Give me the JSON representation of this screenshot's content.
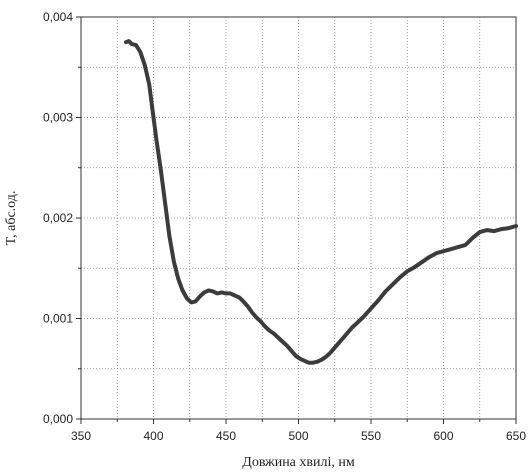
{
  "chart_data": {
    "type": "line",
    "xlabel": "Довжина хвилі, нм",
    "ylabel": "T, абс.од.",
    "xlim": [
      350,
      650
    ],
    "ylim": [
      0,
      0.004
    ],
    "x_ticks": [
      "350",
      "400",
      "450",
      "500",
      "550",
      "600",
      "650"
    ],
    "y_ticks": [
      "0,000",
      "0,001",
      "0,002",
      "0,003",
      "0,004"
    ],
    "grid": true,
    "grid_style": "dotted",
    "line_color": "#3c3c3c",
    "series": [
      {
        "x": [
          381,
          383,
          385,
          388,
          391,
          394,
          397,
          400,
          402,
          405,
          408,
          411,
          414,
          417,
          420,
          423,
          426,
          429,
          432,
          435,
          438,
          441,
          444,
          447,
          450,
          453,
          456,
          459,
          462,
          465,
          468,
          471,
          474,
          477,
          480,
          483,
          486,
          489,
          492,
          495,
          498,
          501,
          504,
          507,
          510,
          513,
          516,
          519,
          522,
          525,
          528,
          531,
          534,
          537,
          540,
          545,
          550,
          555,
          560,
          565,
          570,
          575,
          580,
          585,
          590,
          595,
          600,
          605,
          610,
          615,
          620,
          625,
          630,
          635,
          640,
          645,
          650
        ],
        "y": [
          0.00375,
          0.00376,
          0.00373,
          0.00372,
          0.00365,
          0.00352,
          0.00333,
          0.003,
          0.00278,
          0.00248,
          0.00215,
          0.00182,
          0.00157,
          0.0014,
          0.00128,
          0.0012,
          0.00116,
          0.00117,
          0.00122,
          0.00126,
          0.00128,
          0.00127,
          0.00125,
          0.00126,
          0.00125,
          0.00125,
          0.00123,
          0.00121,
          0.00117,
          0.00112,
          0.00106,
          0.00101,
          0.00097,
          0.00092,
          0.00088,
          0.00085,
          0.00081,
          0.00077,
          0.00073,
          0.00068,
          0.00063,
          0.0006,
          0.00058,
          0.00056,
          0.00056,
          0.00057,
          0.00059,
          0.00062,
          0.00066,
          0.00071,
          0.00076,
          0.00081,
          0.00086,
          0.00091,
          0.00095,
          0.00102,
          0.0011,
          0.00118,
          0.00127,
          0.00134,
          0.00141,
          0.00147,
          0.00151,
          0.00156,
          0.00161,
          0.00165,
          0.00167,
          0.00169,
          0.00171,
          0.00173,
          0.0018,
          0.00186,
          0.00188,
          0.00187,
          0.00189,
          0.0019,
          0.00192
        ]
      }
    ]
  }
}
